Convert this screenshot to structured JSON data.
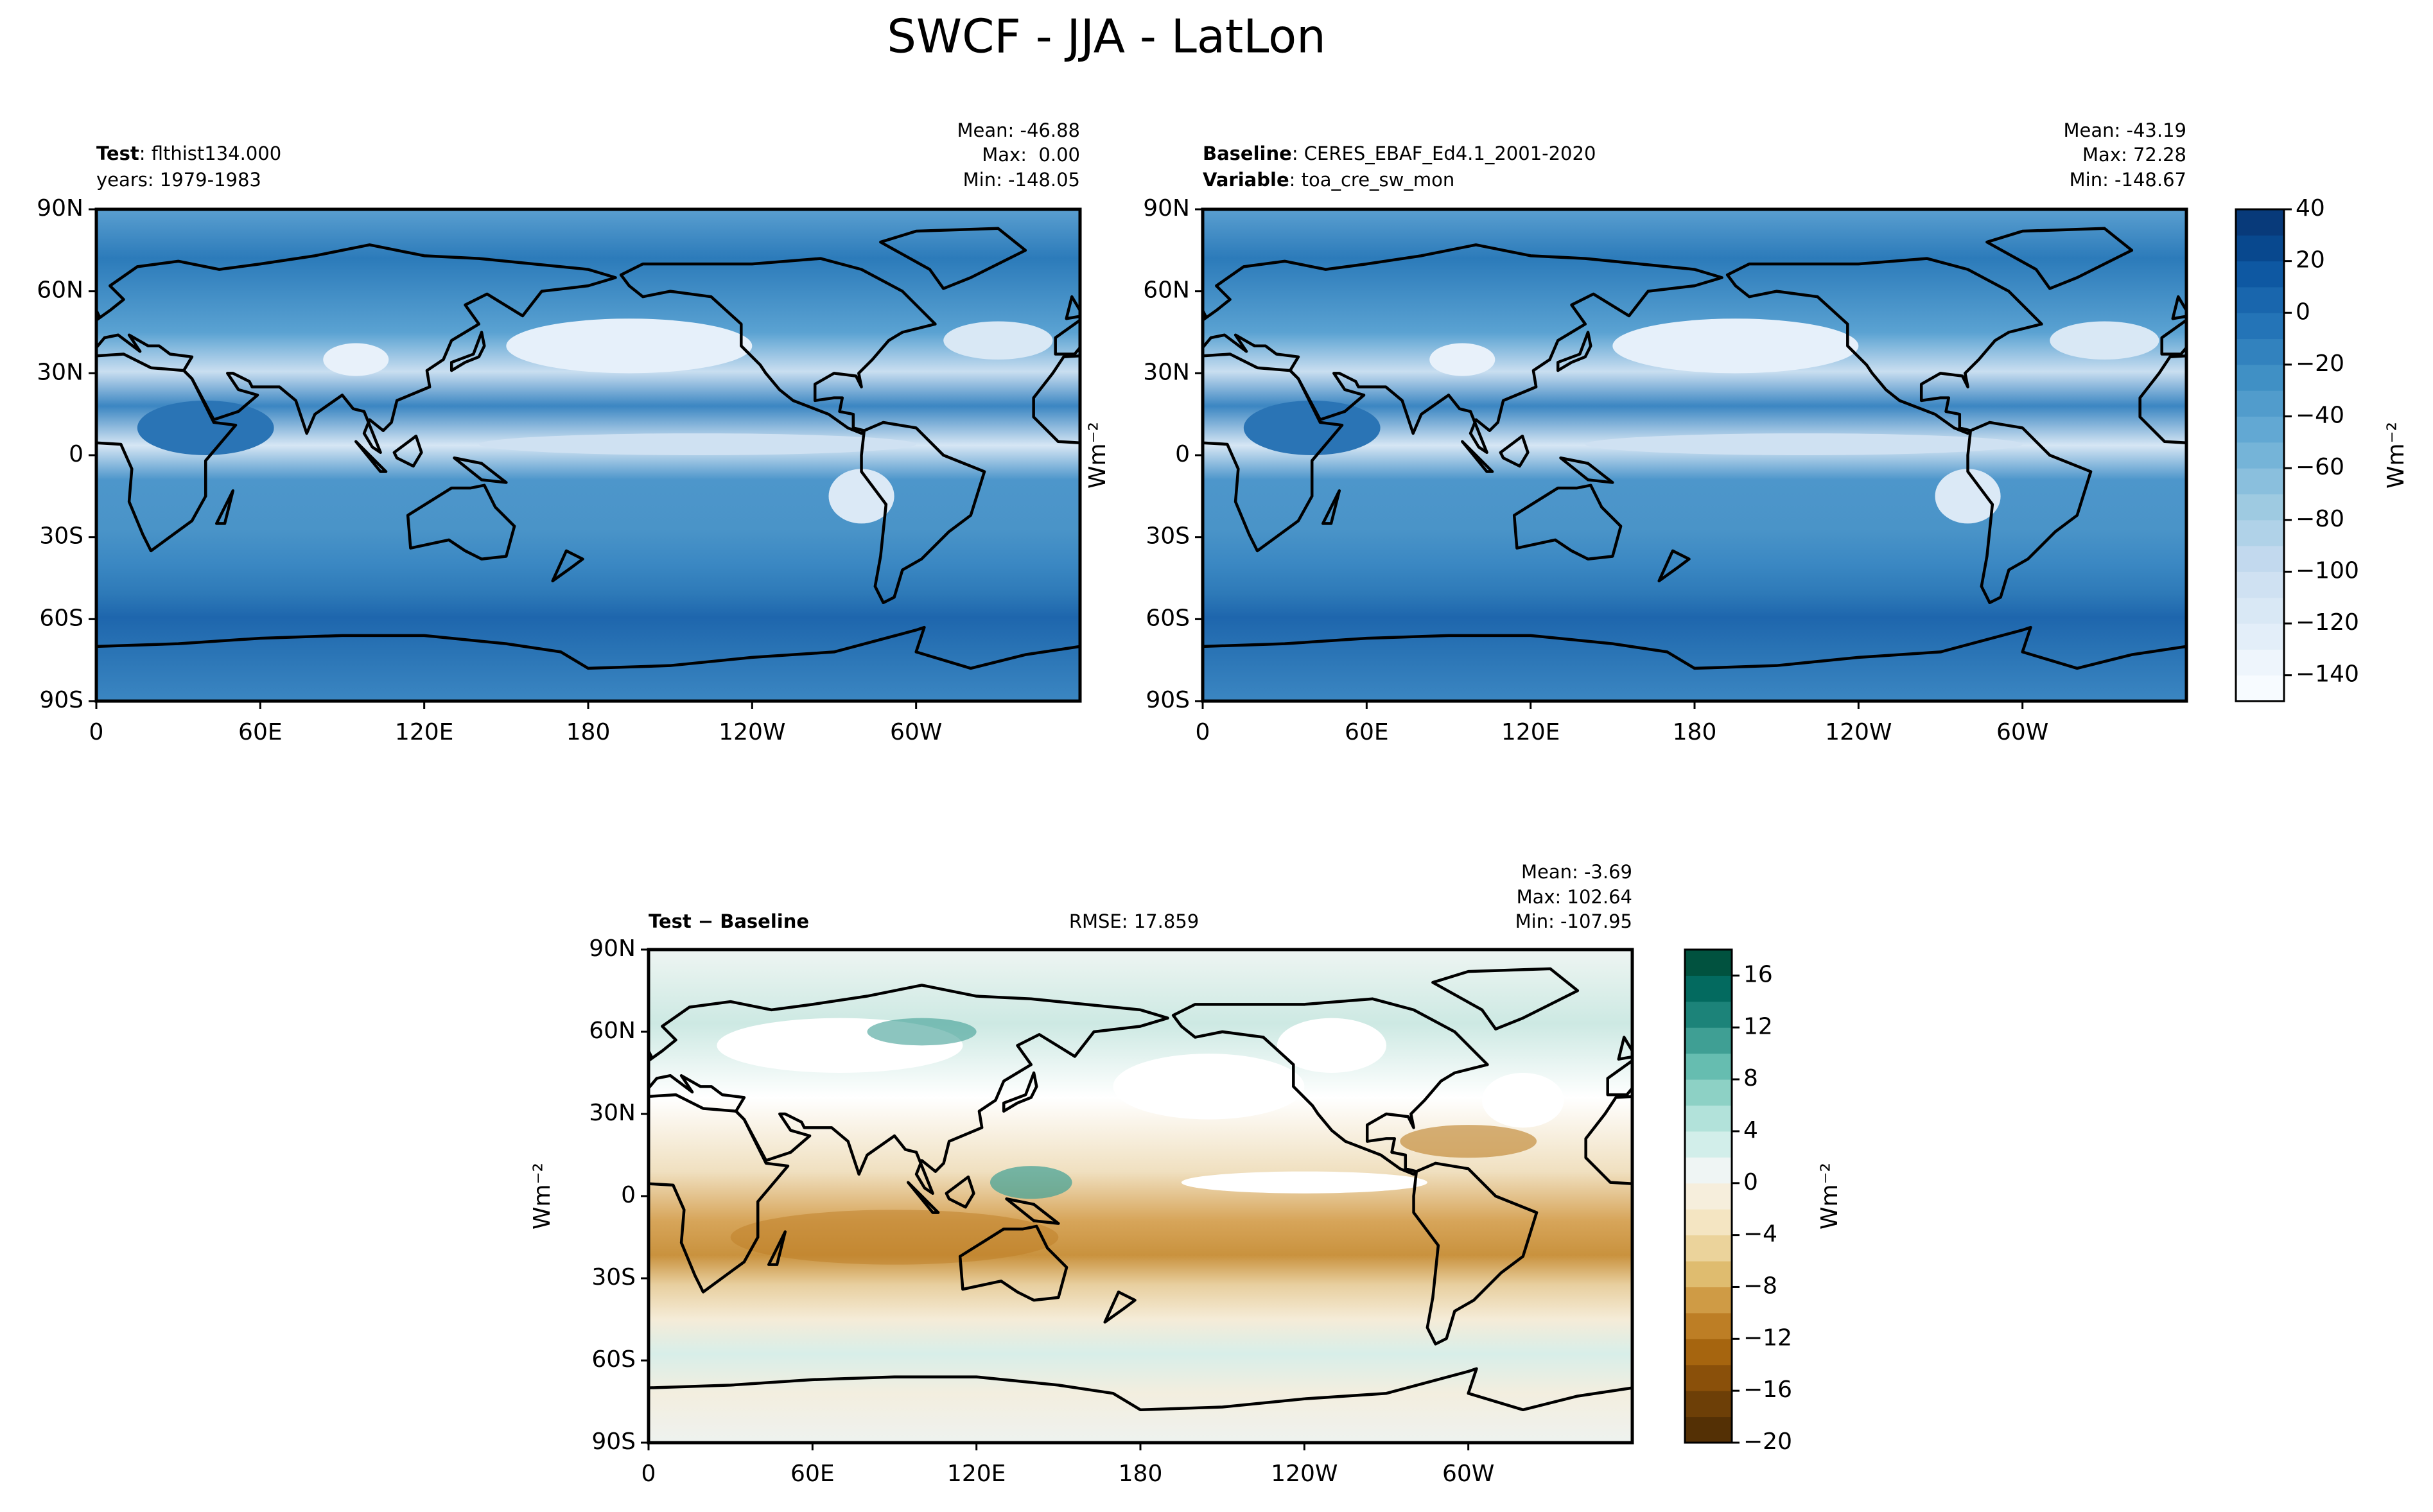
{
  "title": "SWCF - JJA - LatLon",
  "chart_data": [
    {
      "type": "contour-map",
      "header_left": [
        {
          "key": "Test",
          "text": ": flthist134.000"
        },
        {
          "text": "years: 1979-1983"
        }
      ],
      "stats": [
        "Mean: -46.88",
        "Max:  0.00",
        "Min: -148.05"
      ],
      "xlim": [
        0,
        360
      ],
      "ylim": [
        -90,
        90
      ],
      "xticks": [
        0,
        {
          "value": 60,
          "label": "60E"
        },
        {
          "value": 120,
          "label": "120E"
        },
        180,
        {
          "value": 240,
          "label": "120W"
        },
        {
          "value": 300,
          "label": "60W"
        }
      ],
      "yticks": [
        {
          "value": -90,
          "label": "90S"
        },
        {
          "value": -60,
          "label": "60S"
        },
        {
          "value": -30,
          "label": "30S"
        },
        0,
        {
          "value": 30,
          "label": "30N"
        },
        {
          "value": 60,
          "label": "60N"
        },
        {
          "value": 90,
          "label": "90N"
        }
      ]
    },
    {
      "type": "contour-map",
      "header_left": [
        {
          "key": "Baseline",
          "text": ": CERES_EBAF_Ed4.1_2001-2020"
        },
        {
          "key": "Variable",
          "text": ": toa_cre_sw_mon"
        }
      ],
      "stats": [
        "Mean: -43.19",
        "Max: 72.28",
        "Min: -148.67"
      ],
      "ylabel": "Wm⁻²",
      "xlim": [
        0,
        360
      ],
      "ylim": [
        -90,
        90
      ],
      "xticks": [
        0,
        {
          "value": 60,
          "label": "60E"
        },
        {
          "value": 120,
          "label": "120E"
        },
        180,
        {
          "value": 240,
          "label": "120W"
        },
        {
          "value": 300,
          "label": "60W"
        }
      ],
      "yticks": [
        {
          "value": -90,
          "label": "90S"
        },
        {
          "value": -60,
          "label": "60S"
        },
        {
          "value": -30,
          "label": "30S"
        },
        0,
        {
          "value": 30,
          "label": "30N"
        },
        {
          "value": 60,
          "label": "60N"
        },
        {
          "value": 90,
          "label": "90N"
        }
      ],
      "colorbar": {
        "label": "Wm⁻²",
        "lim": [
          -150,
          40
        ],
        "ticks": [
          {
            "value": -140,
            "label": "−140"
          },
          {
            "value": -120,
            "label": "−120"
          },
          {
            "value": -100,
            "label": "−100"
          },
          {
            "value": -80,
            "label": "−80"
          },
          {
            "value": -60,
            "label": "−60"
          },
          {
            "value": -40,
            "label": "−40"
          },
          {
            "value": -20,
            "label": "−20"
          },
          0,
          20,
          40
        ],
        "colors": [
          "#f7fbff",
          "#eef5fc",
          "#e3eef9",
          "#d9e8f5",
          "#cfe1f2",
          "#c2d9ee",
          "#b0d2e8",
          "#9ecae1",
          "#8abfdd",
          "#75b4d8",
          "#62a8d3",
          "#519ccc",
          "#4090c5",
          "#3282be",
          "#2474b7",
          "#1966ad",
          "#0e58a2",
          "#08488e",
          "#083a7a"
        ]
      }
    },
    {
      "type": "contour-map",
      "header_left": [
        {
          "key": "Test − Baseline"
        }
      ],
      "header_center": "RMSE: 17.859",
      "stats": [
        "Mean: -3.69",
        "Max: 102.64",
        "Min: -107.95"
      ],
      "ylabel": "Wm⁻²",
      "xlim": [
        0,
        360
      ],
      "ylim": [
        -90,
        90
      ],
      "xticks": [
        0,
        {
          "value": 60,
          "label": "60E"
        },
        {
          "value": 120,
          "label": "120E"
        },
        180,
        {
          "value": 240,
          "label": "120W"
        },
        {
          "value": 300,
          "label": "60W"
        }
      ],
      "yticks": [
        {
          "value": -90,
          "label": "90S"
        },
        {
          "value": -60,
          "label": "60S"
        },
        {
          "value": -30,
          "label": "30S"
        },
        0,
        {
          "value": 30,
          "label": "30N"
        },
        {
          "value": 60,
          "label": "60N"
        },
        {
          "value": 90,
          "label": "90N"
        }
      ],
      "colorbar": {
        "label": "Wm⁻²",
        "lim": [
          -20,
          18
        ],
        "ticks": [
          {
            "value": -20,
            "label": "−20"
          },
          {
            "value": -16,
            "label": "−16"
          },
          {
            "value": -12,
            "label": "−12"
          },
          {
            "value": -8,
            "label": "−8"
          },
          {
            "value": -4,
            "label": "−4"
          },
          0,
          4,
          8,
          12,
          16
        ],
        "colors": [
          "#543005",
          "#6d3f07",
          "#8a500a",
          "#a6650f",
          "#bd7e25",
          "#cf9b45",
          "#dfbc6f",
          "#ebd39b",
          "#f4e5c2",
          "#f6eedc",
          "#eff5f4",
          "#d2eeea",
          "#b2e2da",
          "#8dd1c5",
          "#66bdb0",
          "#3f9f94",
          "#1c8379",
          "#036a5f",
          "#01523f"
        ]
      }
    }
  ]
}
